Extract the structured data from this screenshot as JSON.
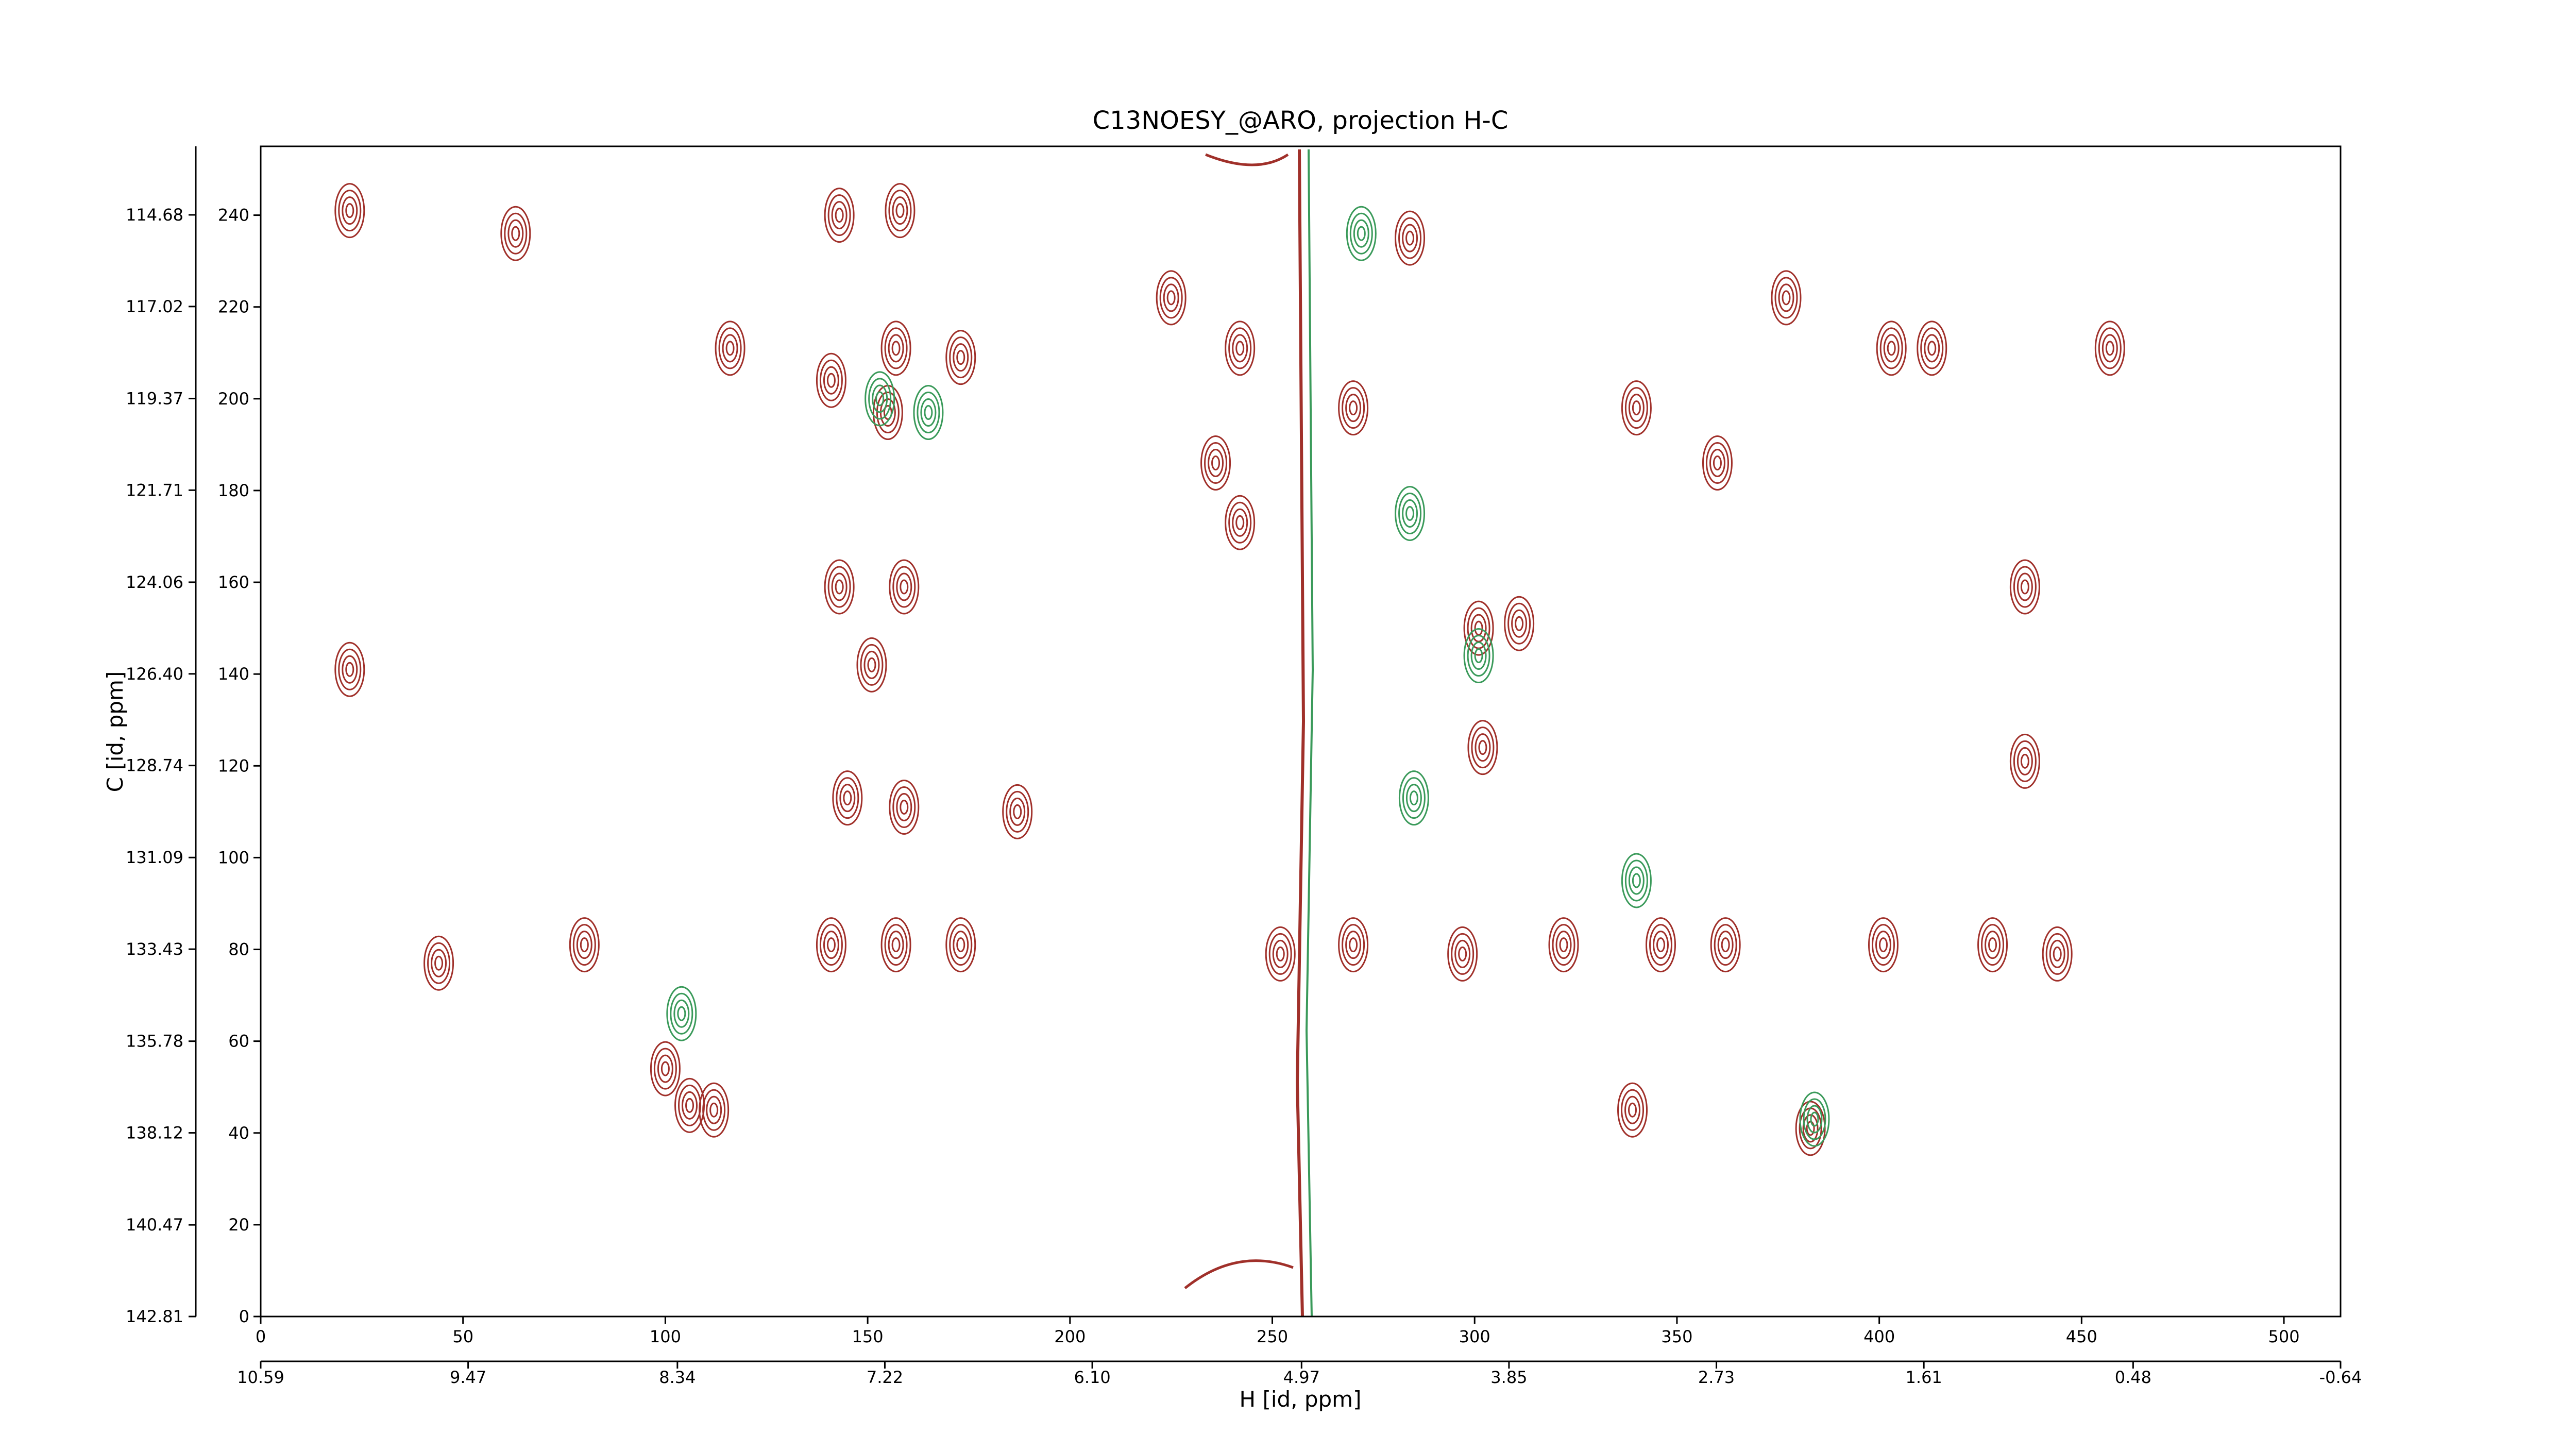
{
  "chart_data": {
    "type": "contour",
    "title": "C13NOESY_@ARO, projection H-C",
    "xlabel": "H [id, ppm]",
    "ylabel": "C [id, ppm]",
    "xlim": [
      0,
      514
    ],
    "ylim": [
      0,
      255
    ],
    "xticks": [
      0,
      50,
      100,
      150,
      200,
      250,
      300,
      350,
      400,
      450,
      500
    ],
    "yticks": [
      0,
      20,
      40,
      60,
      80,
      100,
      120,
      140,
      160,
      180,
      200,
      220,
      240
    ],
    "x2lim": [
      10.59,
      -0.64
    ],
    "x2ticks": [
      10.59,
      9.47,
      8.34,
      7.22,
      {
        "value": 6.1,
        "label": "6.10"
      },
      4.97,
      3.85,
      2.73,
      1.61,
      0.48,
      -0.64
    ],
    "y2lim": [
      142.81,
      112.93
    ],
    "y2ticks": [
      142.81,
      140.47,
      138.12,
      135.78,
      133.43,
      131.09,
      128.74,
      {
        "value": 126.4,
        "label": "126.40"
      },
      124.06,
      121.71,
      119.37,
      117.02,
      114.68
    ],
    "series": [
      {
        "color": "#a0302a",
        "x": [
          22,
          22,
          143,
          158,
          141,
          157,
          173,
          155,
          143,
          159,
          151,
          145,
          159,
          187,
          141,
          157,
          173,
          100,
          106,
          112,
          225,
          242,
          270,
          284,
          236,
          242,
          301,
          311,
          302,
          270,
          252,
          297,
          322,
          340,
          346,
          362,
          401,
          428,
          444,
          403,
          413,
          457,
          377,
          360,
          436,
          436,
          383,
          339,
          44,
          80,
          116,
          63
        ],
        "y": [
          241,
          141,
          240,
          241,
          204,
          211,
          209,
          197,
          159,
          159,
          142,
          113,
          111,
          110,
          81,
          81,
          81,
          54,
          46,
          45,
          222,
          211,
          198,
          235,
          186,
          173,
          150,
          151,
          124,
          81,
          79,
          79,
          81,
          198,
          81,
          81,
          81,
          81,
          79,
          211,
          211,
          211,
          222,
          186,
          159,
          121,
          41,
          45,
          77,
          81,
          211,
          236
        ]
      },
      {
        "color": "#3a9a5a",
        "x": [
          153,
          165,
          284,
          285,
          301,
          340,
          272,
          104,
          384
        ],
        "y": [
          200,
          197,
          175,
          113,
          144,
          95,
          236,
          66,
          43
        ]
      }
    ]
  }
}
